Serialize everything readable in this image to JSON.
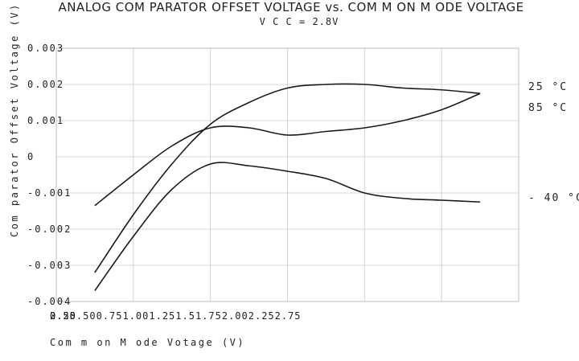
{
  "chart_data": {
    "type": "line",
    "title": "ANALOG COM PARATOR OFFSET VOLTAGE vs.  COM M ON M ODE VOLTAGE",
    "subtitle": "V C C = 2.8V",
    "xlabel": "Com m on  M ode  Votage  (V)",
    "ylabel": "Com parator  Offset  Voltage  (V)",
    "x_tick_labels": [
      "0.25",
      "0.50.500.751.001.251.51.752.002.252.75",
      "2.50"
    ],
    "y_ticks": [
      {
        "value": 0.003,
        "label": "0.003"
      },
      {
        "value": 0.002,
        "label": "0.002"
      },
      {
        "value": 0.001,
        "label": "0.001"
      },
      {
        "value": 0,
        "label": "0"
      },
      {
        "value": -0.001,
        "label": "-0.001"
      },
      {
        "value": -0.002,
        "label": "-0.002"
      },
      {
        "value": -0.003,
        "label": "-0.003"
      },
      {
        "value": -0.004,
        "label": "-0.004"
      }
    ],
    "xlim": [
      0,
      3
    ],
    "ylim": [
      -0.004,
      0.003
    ],
    "grid": true,
    "x_grid": [
      0.5,
      1.0,
      1.5,
      2.0,
      2.5,
      3.0
    ],
    "series": [
      {
        "name": "25 °C",
        "x": [
          0.25,
          0.5,
          0.75,
          1.0,
          1.25,
          1.5,
          1.75,
          2.0,
          2.25,
          2.5,
          2.75
        ],
        "y": [
          -0.0032,
          -0.0016,
          -0.0002,
          0.0009,
          0.0015,
          0.0019,
          0.002,
          0.002,
          0.0019,
          0.00185,
          0.00175
        ]
      },
      {
        "name": "85 °C",
        "x": [
          0.25,
          0.5,
          0.75,
          1.0,
          1.25,
          1.5,
          1.75,
          2.0,
          2.25,
          2.5,
          2.75
        ],
        "y": [
          -0.00135,
          -0.0005,
          0.0003,
          0.0008,
          0.0008,
          0.0006,
          0.0007,
          0.0008,
          0.001,
          0.0013,
          0.00175
        ]
      },
      {
        "name": "- 40  °C",
        "x": [
          0.25,
          0.5,
          0.75,
          1.0,
          1.25,
          1.5,
          1.75,
          2.0,
          2.25,
          2.5,
          2.75
        ],
        "y": [
          -0.0037,
          -0.0022,
          -0.0009,
          -0.0002,
          -0.00025,
          -0.0004,
          -0.0006,
          -0.001,
          -0.00115,
          -0.0012,
          -0.00125
        ]
      }
    ]
  }
}
